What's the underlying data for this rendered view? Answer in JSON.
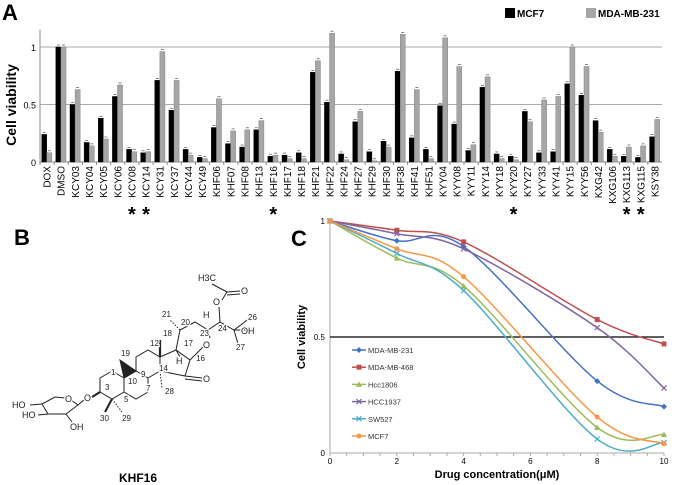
{
  "panel_labels": {
    "a": "A",
    "b": "B",
    "c": "C"
  },
  "chart_data": [
    {
      "type": "bar",
      "panel": "A",
      "ylabel": "Cell viability",
      "ylim": [
        0,
        1.15
      ],
      "yticks": [
        "0",
        "0.5",
        "1"
      ],
      "ytick_values": [
        0,
        0.5,
        1
      ],
      "grid": "horizontal",
      "legend_position": "top-right",
      "categories": [
        "DOX",
        "DMSO",
        "KCY03",
        "KCY04",
        "KCY05",
        "KCY06",
        "KCY08",
        "KCY14",
        "KCY31",
        "KCY37",
        "KCY44",
        "KCY49",
        "KHF06",
        "KHF07",
        "KHF08",
        "KHF13",
        "KHF16",
        "KHF17",
        "KHF18",
        "KHF21",
        "KHF22",
        "KHF24",
        "KHF27",
        "KHF29",
        "KHF30",
        "KHF38",
        "KHF41",
        "KHF51",
        "KYY04",
        "KYY08",
        "KYY11",
        "KYY14",
        "KYY18",
        "KYY20",
        "KYY27",
        "KYY33",
        "KYY41",
        "KYY15",
        "KYY56",
        "KXG42",
        "KXG106",
        "KXG113",
        "KXG115",
        "KSY38"
      ],
      "series": [
        {
          "name": "MCF7",
          "color": "#000000",
          "values": [
            0.24,
            1.0,
            0.5,
            0.17,
            0.38,
            0.57,
            0.11,
            0.08,
            0.71,
            0.45,
            0.11,
            0.04,
            0.3,
            0.16,
            0.13,
            0.28,
            0.05,
            0.06,
            0.08,
            0.78,
            0.52,
            0.07,
            0.35,
            0.09,
            0.18,
            0.79,
            0.21,
            0.11,
            0.49,
            0.33,
            0.1,
            0.65,
            0.07,
            0.05,
            0.44,
            0.08,
            0.09,
            0.68,
            0.58,
            0.36,
            0.11,
            0.05,
            0.04,
            0.22
          ]
        },
        {
          "name": "MDA-MB-231",
          "color": "#a6a6a6",
          "values": [
            0.08,
            1.0,
            0.63,
            0.14,
            0.2,
            0.67,
            0.09,
            0.09,
            0.96,
            0.71,
            0.06,
            0.03,
            0.55,
            0.27,
            0.28,
            0.36,
            0.06,
            0.03,
            0.03,
            0.88,
            1.12,
            0.02,
            0.44,
            0.01,
            0.13,
            1.11,
            0.63,
            0.03,
            1.08,
            0.83,
            0.15,
            0.74,
            0.03,
            0.02,
            0.35,
            0.54,
            0.57,
            1.0,
            0.83,
            0.26,
            0.05,
            0.13,
            0.14,
            0.37
          ]
        }
      ],
      "marked_categories": [
        "KCY08",
        "KCY14",
        "KHF16",
        "KYY20",
        "KXG113",
        "KXG115"
      ],
      "marker_symbol": "*"
    },
    {
      "type": "line",
      "panel": "C",
      "xlabel": "Drug concentration(μM)",
      "ylabel": "Cell viability",
      "xlim": [
        0,
        10
      ],
      "ylim": [
        0,
        1
      ],
      "xticks": [
        "0",
        "2",
        "4",
        "6",
        "8",
        "10"
      ],
      "yticks": [
        "0",
        "0.5",
        "1"
      ],
      "reference_line_y": 0.5,
      "legend_position": "center-left",
      "x": [
        0,
        2,
        4,
        8,
        10
      ],
      "series": [
        {
          "name": "MDA-MB-231",
          "color": "#4472c4",
          "marker": "diamond",
          "values": [
            1.0,
            0.915,
            0.89,
            0.31,
            0.2
          ]
        },
        {
          "name": "MDA-MB-468",
          "color": "#c0504d",
          "marker": "square",
          "values": [
            1.0,
            0.96,
            0.91,
            0.575,
            0.47
          ]
        },
        {
          "name": "Hcc1806",
          "color": "#9bbb59",
          "marker": "triangle",
          "values": [
            1.0,
            0.84,
            0.72,
            0.11,
            0.08
          ]
        },
        {
          "name": "HCC1937",
          "color": "#8064a2",
          "marker": "x",
          "values": [
            1.0,
            0.945,
            0.88,
            0.54,
            0.28
          ]
        },
        {
          "name": "SW527",
          "color": "#4bacc6",
          "marker": "star",
          "values": [
            1.0,
            0.86,
            0.7,
            0.06,
            0.045
          ]
        },
        {
          "name": "MCF7",
          "color": "#f79646",
          "marker": "circle",
          "values": [
            1.0,
            0.88,
            0.76,
            0.155,
            0.04
          ]
        }
      ]
    }
  ],
  "panel_b": {
    "compound_name": "KHF16",
    "atoms": [
      "H3C",
      "O",
      "O",
      "H",
      "21",
      "20",
      "26",
      "OH",
      "24",
      "23",
      "27",
      "18",
      "17",
      "O",
      "12",
      "19",
      "H",
      "16",
      "14",
      "O",
      "9",
      "10",
      "1",
      "7",
      "28",
      "3",
      "5",
      "O",
      "HO",
      "O",
      "HO",
      "30",
      "29",
      "OH"
    ]
  }
}
